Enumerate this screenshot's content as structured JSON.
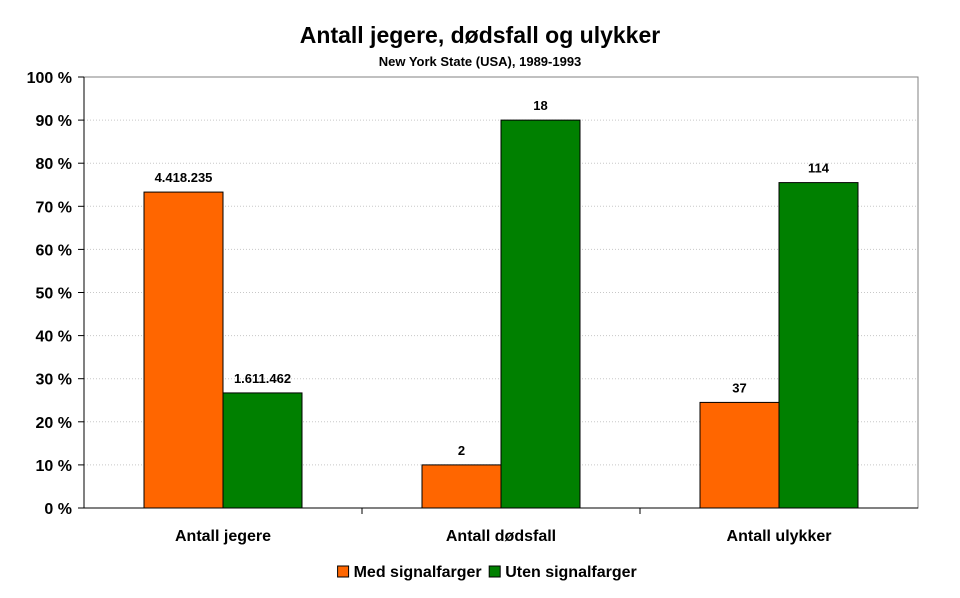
{
  "chart_data": {
    "type": "bar",
    "title": "Antall jegere, dødsfall og ulykker",
    "subtitle": "New York State (USA), 1989-1993",
    "categories": [
      "Antall jegere",
      "Antall dødsfall",
      "Antall ulykker"
    ],
    "series": [
      {
        "name": "Med signalfarger",
        "color": "#ff6600",
        "values": [
          73.3,
          10.0,
          24.5
        ],
        "labels": [
          "4.418.235",
          "2",
          "37"
        ]
      },
      {
        "name": "Uten signalfarger",
        "color": "#008000",
        "values": [
          26.7,
          90.0,
          75.5
        ],
        "labels": [
          "1.611.462",
          "18",
          "114"
        ]
      }
    ],
    "ylim": [
      0,
      100
    ],
    "yticks": [
      0,
      10,
      20,
      30,
      40,
      50,
      60,
      70,
      80,
      90,
      100
    ],
    "ytick_labels": [
      "0 %",
      "10 %",
      "20 %",
      "30 %",
      "40 %",
      "50 %",
      "60 %",
      "70 %",
      "80 %",
      "90 %",
      "100 %"
    ],
    "grid": true,
    "legend_position": "bottom"
  }
}
